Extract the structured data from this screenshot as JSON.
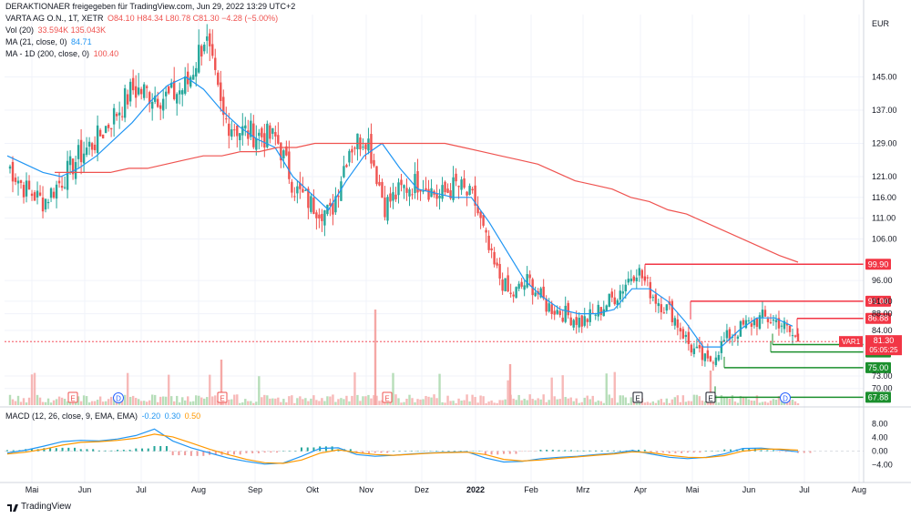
{
  "header": {
    "source": "DERAKTIONAER freigegeben für TradingView.com, Jun 29, 2022 13:29 UTC+2",
    "symbol": "VARTA AG O.N., 1T, XETR",
    "ohlc": "O84.10  H84.34  L80.78  C81.30  −4.28 (−5.00%)",
    "vol_label": "Vol (20)",
    "vol_values": "33.594K  135.043K",
    "ma21_label": "MA (21, close, 0)",
    "ma21_value": "84.71",
    "ma200_label": "MA - 1D (200, close, 0)",
    "ma200_value": "100.40",
    "macd_label": "MACD (12, 26, close, 9, EMA, EMA)",
    "macd_values": [
      "-0.20",
      "0.30",
      "0.50"
    ]
  },
  "brand": "TradingView",
  "colors": {
    "up": "#26a69a",
    "down": "#ef5350",
    "ma21": "#2196f3",
    "ma200": "#ef5350",
    "signal": "#ff9800",
    "level": "#f23645",
    "support": "#1b8f2d",
    "axis_text": "#131722"
  },
  "chart_data": {
    "type": "candlestick",
    "currency": "EUR",
    "y_ticks": [
      145.0,
      137.0,
      129.0,
      121.0,
      116.0,
      111.0,
      106.0,
      96.0,
      91.0,
      88.0,
      84.0,
      73.0,
      70.0
    ],
    "x_ticks": [
      "Mai",
      "Jun",
      "Jul",
      "Aug",
      "Sep",
      "Okt",
      "Nov",
      "Dez",
      "2022",
      "Feb",
      "Mrz",
      "Apr",
      "Mai",
      "Jun",
      "Jul",
      "Aug"
    ],
    "last_price": {
      "label": "VAR1",
      "value": "81.30",
      "countdown": "05:05:25"
    },
    "resistance_levels": [
      {
        "label": "99.90",
        "value": 99.9,
        "start": "Apr"
      },
      {
        "label": "91.00",
        "value": 91.0,
        "start": "Mai"
      },
      {
        "label": "86.88",
        "value": 86.88,
        "start": "Jun"
      }
    ],
    "support_levels": [
      {
        "label": "80.56",
        "value": 80.56
      },
      {
        "label": "78.78",
        "value": 78.78
      },
      {
        "label": "75.00",
        "value": 75.0
      },
      {
        "label": "67.88",
        "value": 67.88
      }
    ],
    "series": [
      {
        "name": "MA (21, close, 0)",
        "values": [
          126,
          124,
          122,
          121,
          123,
          126,
          130,
          134,
          139,
          143,
          145,
          142,
          137,
          133,
          130,
          128,
          121,
          117,
          113,
          120,
          126,
          129,
          123,
          118,
          117,
          116,
          116,
          110,
          103,
          96,
          92,
          89,
          88,
          88,
          89,
          94,
          94,
          91,
          86,
          80,
          80,
          84,
          87,
          87,
          85
        ]
      },
      {
        "name": "MA - 1D (200, close, 0)",
        "values": [
          122,
          122,
          122,
          122,
          123,
          123,
          124,
          125,
          126,
          126,
          127,
          127,
          128,
          128,
          129,
          129,
          129,
          129,
          129,
          129,
          129,
          129,
          128,
          127,
          126,
          125,
          124,
          122,
          120,
          119,
          118,
          116,
          115,
          113,
          112,
          110,
          108,
          106,
          104,
          102,
          100.4
        ]
      },
      {
        "name": "Close",
        "values": [
          124,
          118,
          115,
          120,
          126,
          130,
          136,
          142,
          141,
          140,
          143,
          155,
          135,
          132,
          131,
          130,
          118,
          114,
          112,
          128,
          131,
          114,
          118,
          120,
          116,
          119,
          115,
          100,
          92,
          96,
          90,
          88,
          86,
          89,
          93,
          99,
          92,
          88,
          80,
          76,
          82,
          85,
          87,
          86,
          81.3
        ]
      }
    ],
    "macd": {
      "y_ticks": [
        8.0,
        4.0,
        0.0,
        -4.0
      ],
      "macd_line": [
        -0.5,
        0.3,
        1.5,
        2.8,
        3.2,
        3.0,
        3.6,
        4.6,
        6.5,
        3.0,
        1.0,
        -0.5,
        -2.0,
        -3.0,
        -3.8,
        -3.5,
        -1.5,
        0.8,
        1.0,
        -1.0,
        -1.5,
        -1.2,
        -0.8,
        -0.5,
        -0.3,
        -0.2,
        -2.0,
        -3.2,
        -3.0,
        -2.2,
        -1.8,
        -1.5,
        -1.0,
        -0.6,
        0.2,
        -0.8,
        -1.8,
        -2.2,
        -1.8,
        -0.8,
        0.8,
        0.9,
        0.4,
        -0.2
      ],
      "signal_line": [
        -0.8,
        -0.3,
        0.6,
        1.8,
        2.6,
        2.8,
        3.2,
        3.8,
        5.0,
        4.2,
        2.4,
        0.6,
        -1.0,
        -2.4,
        -3.4,
        -3.6,
        -2.6,
        -0.6,
        0.4,
        -0.4,
        -1.0,
        -1.2,
        -0.9,
        -0.6,
        -0.4,
        -0.3,
        -1.0,
        -2.4,
        -2.9,
        -2.6,
        -2.1,
        -1.7,
        -1.2,
        -0.8,
        -0.2,
        -0.4,
        -1.2,
        -1.8,
        -1.9,
        -1.3,
        0.0,
        0.6,
        0.6,
        0.3
      ]
    }
  }
}
